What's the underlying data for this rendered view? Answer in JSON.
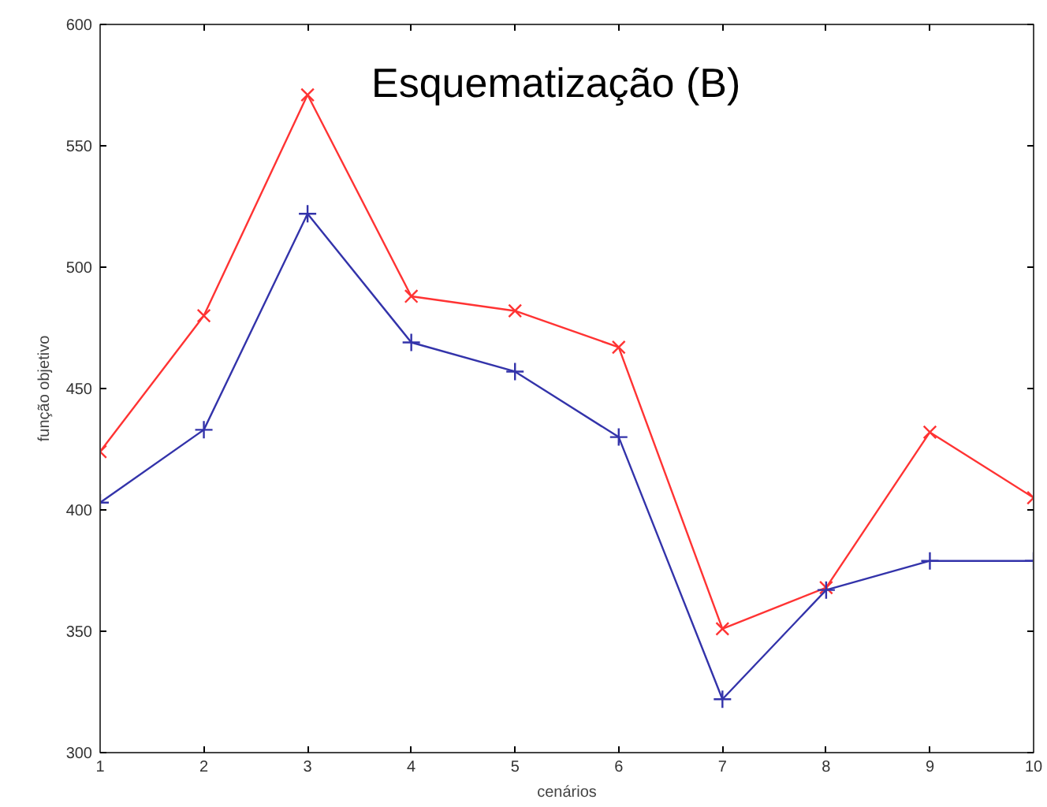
{
  "chart_data": {
    "type": "line",
    "title": "Esquematização (B)",
    "xlabel": "cenários",
    "ylabel": "função objetivo",
    "x": [
      1,
      2,
      3,
      4,
      5,
      6,
      7,
      8,
      9,
      10
    ],
    "series": [
      {
        "color": "#ff3333",
        "marker": "x",
        "values": [
          424,
          480,
          571,
          488,
          482,
          467,
          351,
          368,
          432,
          405
        ]
      },
      {
        "color": "#3333aa",
        "marker": "cross",
        "values": [
          403,
          433,
          522,
          469,
          457,
          430,
          322,
          367,
          379,
          379
        ]
      }
    ],
    "xlim": [
      1,
      10
    ],
    "xticks": [
      1,
      2,
      3,
      4,
      5,
      6,
      7,
      8,
      9,
      10
    ],
    "ylim": [
      300,
      600
    ],
    "yticks": [
      300,
      350,
      400,
      450,
      500,
      550,
      600
    ],
    "grid": false,
    "line_style": "solid"
  }
}
